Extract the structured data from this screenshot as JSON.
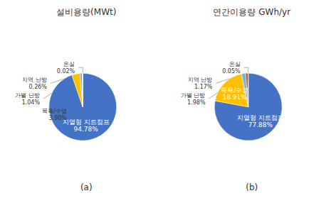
{
  "chart_data": [
    {
      "type": "pie",
      "title": "설비용량(MWt)",
      "subtitle": "(a)",
      "categories": [
        "지열형 지트점프",
        "목욕/수영",
        "가별 난방",
        "지역 난방",
        "온실"
      ],
      "values": [
        94.78,
        3.9,
        1.04,
        0.26,
        0.02
      ],
      "value_labels": [
        "94.78%",
        "3.90%",
        "1.04%",
        "0.26%",
        "0.02%"
      ],
      "colors": [
        "#4472C4",
        "#FFC000",
        "#70B7DC",
        "#D0D0D0",
        "#D0D0D0"
      ],
      "data_labels": true
    },
    {
      "type": "pie",
      "title": "연간이용량 GWh/yr",
      "subtitle": "(b)",
      "categories": [
        "지열형 지트점프",
        "목욕/수영",
        "가별 난방",
        "지역 난방",
        "온실"
      ],
      "values": [
        77.88,
        18.91,
        1.98,
        1.17,
        0.05
      ],
      "value_labels": [
        "77.88%",
        "18.91%",
        "1.98%",
        "1.17%",
        "0.05%"
      ],
      "colors": [
        "#4472C4",
        "#FFC000",
        "#70B7DC",
        "#E8450A",
        "#A8C87A"
      ],
      "data_labels": true
    }
  ]
}
